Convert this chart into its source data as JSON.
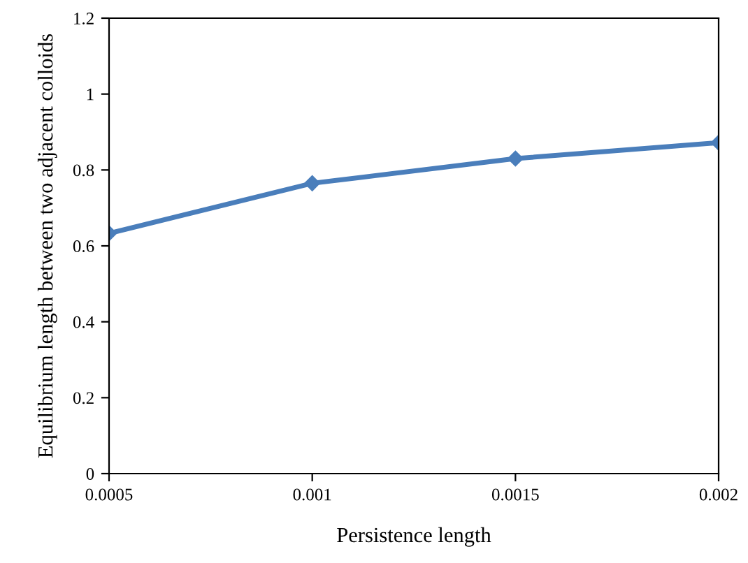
{
  "chart_data": {
    "type": "line",
    "xlabel": "Persistence length",
    "ylabel": "Equilibrium length between two adjacent colloids",
    "x": [
      0.0005,
      0.001,
      0.0015,
      0.002
    ],
    "series": [
      {
        "color": "#4a7ebb",
        "values": [
          0.633,
          0.765,
          0.83,
          0.872
        ]
      }
    ],
    "xlim": [
      0.0005,
      0.002
    ],
    "xticks": [
      0.0005,
      0.001,
      0.0015,
      0.002
    ],
    "ylim": [
      0,
      1.2
    ],
    "yticks": [
      0,
      0.2,
      0.4,
      0.6,
      0.8,
      1,
      1.2
    ],
    "marker": "diamond",
    "line_style": "solid",
    "grid": false,
    "legend": false
  }
}
